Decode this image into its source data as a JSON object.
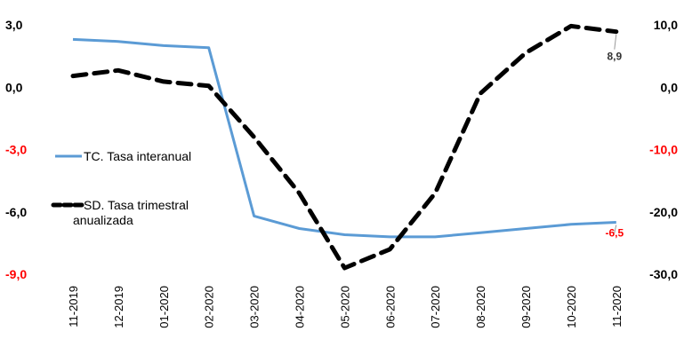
{
  "chart_data": {
    "type": "line",
    "categories": [
      "11-2019",
      "12-2019",
      "01-2020",
      "02-2020",
      "03-2020",
      "04-2020",
      "05-2020",
      "06-2020",
      "07-2020",
      "08-2020",
      "09-2020",
      "10-2020",
      "11-2020"
    ],
    "series": [
      {
        "name": "TC. Tasa interanual",
        "axis": "left",
        "color": "#5b9bd5",
        "style": "solid",
        "values": [
          2.3,
          2.2,
          2.0,
          1.9,
          -6.2,
          -6.8,
          -7.1,
          -7.2,
          -7.2,
          -7.0,
          -6.8,
          -6.6,
          -6.5
        ]
      },
      {
        "name": "SD. Tasa trimestral anualizada",
        "name_lines": [
          "SD. Tasa trimestral",
          "anualizada"
        ],
        "axis": "right",
        "color": "#000000",
        "style": "dashed",
        "values": [
          1.8,
          2.7,
          0.9,
          0.2,
          -8.0,
          -17.0,
          -29.0,
          -26.0,
          -17.0,
          -1.0,
          5.5,
          9.8,
          8.9
        ]
      }
    ],
    "left_axis": {
      "ylim": [
        -9,
        3
      ],
      "ticks": [
        {
          "value": 3,
          "label": "3,0",
          "color": "#000000"
        },
        {
          "value": 0,
          "label": "0,0",
          "color": "#000000"
        },
        {
          "value": -3,
          "label": "-3,0",
          "color": "#ff0000"
        },
        {
          "value": -6,
          "label": "-6,0",
          "color": "#000000"
        },
        {
          "value": -9,
          "label": "-9,0",
          "color": "#ff0000"
        }
      ]
    },
    "right_axis": {
      "ylim": [
        -30,
        10
      ],
      "ticks": [
        {
          "value": 10,
          "label": "10,0",
          "color": "#000000"
        },
        {
          "value": 0,
          "label": "0,0",
          "color": "#000000"
        },
        {
          "value": -10,
          "label": "-10,0",
          "color": "#ff0000"
        },
        {
          "value": -20,
          "label": "-20,0",
          "color": "#000000"
        },
        {
          "value": -30,
          "label": "-30,0",
          "color": "#000000"
        }
      ]
    },
    "annotations": [
      {
        "series": 1,
        "index": 12,
        "text": "8,9",
        "color": "#333333"
      },
      {
        "series": 0,
        "index": 12,
        "text": "-6,5",
        "color": "#ff0000"
      }
    ],
    "grid": false,
    "legend_position": "left-middle"
  }
}
